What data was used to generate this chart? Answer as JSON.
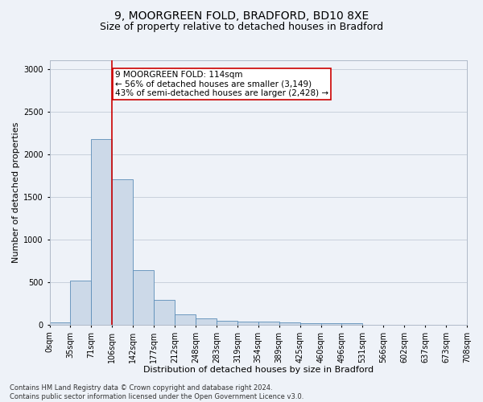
{
  "title_line1": "9, MOORGREEN FOLD, BRADFORD, BD10 8XE",
  "title_line2": "Size of property relative to detached houses in Bradford",
  "xlabel": "Distribution of detached houses by size in Bradford",
  "ylabel": "Number of detached properties",
  "bar_values": [
    30,
    520,
    2180,
    1700,
    635,
    290,
    125,
    75,
    45,
    35,
    35,
    25,
    20,
    20,
    20,
    0,
    0,
    0,
    0,
    0
  ],
  "bin_labels": [
    "0sqm",
    "35sqm",
    "71sqm",
    "106sqm",
    "142sqm",
    "177sqm",
    "212sqm",
    "248sqm",
    "283sqm",
    "319sqm",
    "354sqm",
    "389sqm",
    "425sqm",
    "460sqm",
    "496sqm",
    "531sqm",
    "566sqm",
    "602sqm",
    "637sqm",
    "673sqm",
    "708sqm"
  ],
  "bar_color": "#ccd9e8",
  "bar_edge_color": "#5b8db8",
  "vline_x": 3,
  "vline_color": "#cc0000",
  "annotation_text": "9 MOORGREEN FOLD: 114sqm\n← 56% of detached houses are smaller (3,149)\n43% of semi-detached houses are larger (2,428) →",
  "annotation_box_color": "#ffffff",
  "annotation_box_edge_color": "#cc0000",
  "ylim": [
    0,
    3100
  ],
  "yticks": [
    0,
    500,
    1000,
    1500,
    2000,
    2500,
    3000
  ],
  "grid_color": "#c8d0dc",
  "bg_color": "#eef2f8",
  "footnote": "Contains HM Land Registry data © Crown copyright and database right 2024.\nContains public sector information licensed under the Open Government Licence v3.0.",
  "title_fontsize": 10,
  "subtitle_fontsize": 9,
  "axis_label_fontsize": 8,
  "tick_fontsize": 7,
  "footnote_fontsize": 6,
  "annotation_fontsize": 7.5
}
